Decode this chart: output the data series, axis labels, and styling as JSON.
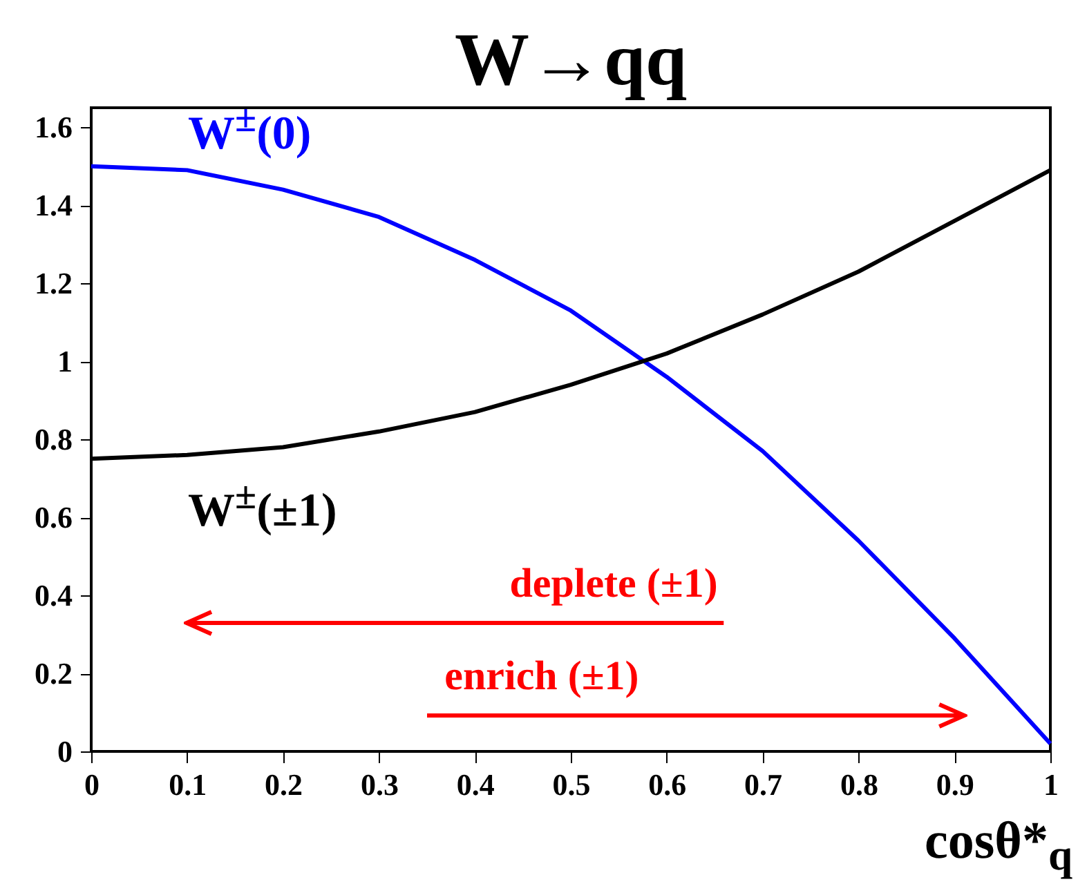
{
  "chart_data": {
    "type": "line",
    "title": "W→qq",
    "xlabel": "cosθ*$_{q}$",
    "x": [
      0,
      0.1,
      0.2,
      0.3,
      0.4,
      0.5,
      0.6,
      0.7,
      0.8,
      0.9,
      1.0
    ],
    "series": [
      {
        "name": "W$^{±}$(0)",
        "color": "#0000ff",
        "values": [
          1.5,
          1.49,
          1.44,
          1.37,
          1.26,
          1.13,
          0.96,
          0.77,
          0.54,
          0.29,
          0.02
        ]
      },
      {
        "name": "W$^{±}$(±1)",
        "color": "#000000",
        "values": [
          0.75,
          0.76,
          0.78,
          0.82,
          0.87,
          0.94,
          1.02,
          1.12,
          1.23,
          1.36,
          1.49
        ]
      }
    ],
    "xlim": [
      0,
      1
    ],
    "xticks": [
      0,
      0.1,
      0.2,
      0.3,
      0.4,
      0.5,
      0.6,
      0.7,
      0.8,
      0.9,
      1
    ],
    "ylim": [
      0,
      1.65
    ],
    "yticks": [
      0,
      0.2,
      0.4,
      0.6,
      0.8,
      1,
      1.2,
      1.4,
      1.6
    ],
    "annotations": [
      "deplete (±1)",
      "enrich (±1)"
    ],
    "grid": false,
    "legend": false,
    "marker": "none",
    "line_style": "solid"
  }
}
